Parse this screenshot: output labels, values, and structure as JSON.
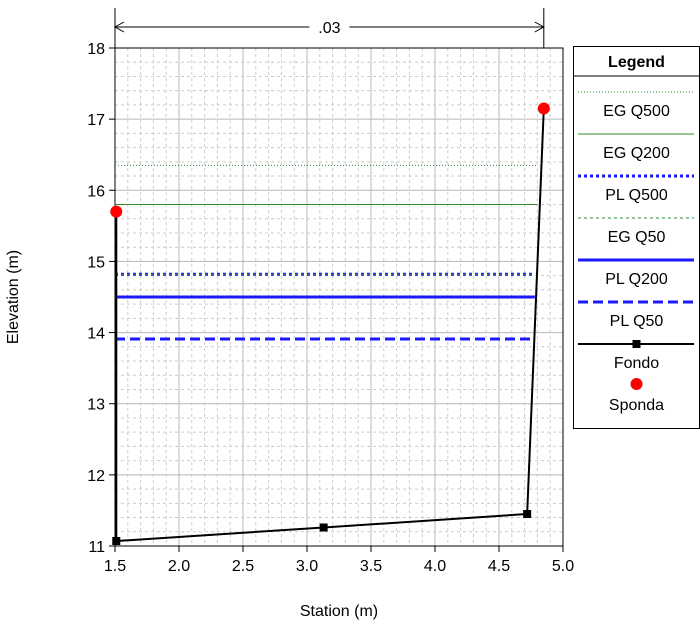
{
  "chart_data": {
    "type": "line",
    "xlabel": "Station (m)",
    "ylabel": "Elevation (m)",
    "xlim": [
      1.5,
      5.0
    ],
    "ylim": [
      11,
      18
    ],
    "xticks": [
      "1.5",
      "2.0",
      "2.5",
      "3.0",
      "3.5",
      "4.0",
      "4.5",
      "5.0"
    ],
    "yticks": [
      "11",
      "12",
      "13",
      "14",
      "15",
      "16",
      "17",
      "18"
    ],
    "grid": true,
    "legend_title": "Legend",
    "legend_position": "right",
    "annotation": {
      "text": ".03",
      "x_start": 1.5,
      "x_end": 4.85
    },
    "series": [
      {
        "name": "EG Q500",
        "style": "dotted-thin",
        "color": "#2e8b2e",
        "x": [
          1.5,
          4.8
        ],
        "y": [
          16.35,
          16.35
        ]
      },
      {
        "name": "EG Q200",
        "style": "solid-thin",
        "color": "#2e8b2e",
        "x": [
          1.5,
          4.8
        ],
        "y": [
          15.8,
          15.8
        ]
      },
      {
        "name": "PL Q500",
        "style": "dotted-thick",
        "color": "#1a1aff",
        "x": [
          1.5,
          4.78
        ],
        "y": [
          14.82,
          14.82
        ]
      },
      {
        "name": "EG Q50",
        "style": "dashed-thin",
        "color": "#2e8b2e",
        "x": [
          1.5,
          4.78
        ],
        "y": [
          14.82,
          14.82
        ]
      },
      {
        "name": "PL Q200",
        "style": "solid-thick",
        "color": "#1a1aff",
        "x": [
          1.5,
          4.78
        ],
        "y": [
          14.5,
          14.5
        ]
      },
      {
        "name": "PL Q50",
        "style": "dashed-thick",
        "color": "#1a1aff",
        "x": [
          1.5,
          4.77
        ],
        "y": [
          13.91,
          13.91
        ]
      },
      {
        "name": "Fondo",
        "style": "line-square",
        "color": "#000000",
        "x": [
          1.51,
          1.51,
          3.13,
          4.72,
          4.85
        ],
        "y": [
          15.7,
          11.07,
          11.26,
          11.45,
          17.15
        ]
      },
      {
        "name": "Sponda",
        "style": "marker-circle",
        "color": "#ff0000",
        "x": [
          1.51,
          4.85
        ],
        "y": [
          15.7,
          17.15
        ]
      }
    ]
  }
}
